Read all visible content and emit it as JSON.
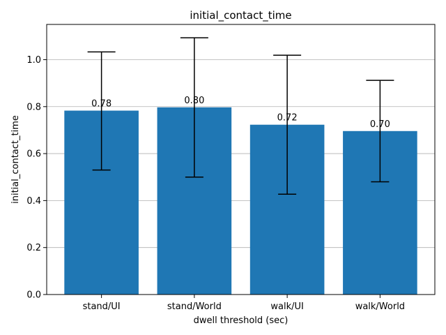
{
  "chart_data": {
    "type": "bar",
    "title": "initial_contact_time",
    "xlabel": "dwell threshold (sec)",
    "ylabel": "initial_contact_time",
    "categories": [
      "stand/UI",
      "stand/World",
      "walk/UI",
      "walk/World"
    ],
    "values": [
      0.783,
      0.797,
      0.723,
      0.696
    ],
    "value_labels": [
      "0.78",
      "0.80",
      "0.72",
      "0.70"
    ],
    "error_low": [
      0.53,
      0.5,
      0.427,
      0.48
    ],
    "error_high": [
      1.033,
      1.093,
      1.019,
      0.912
    ],
    "ylim": [
      0,
      1.15
    ],
    "yticks": [
      0.0,
      0.2,
      0.4,
      0.6,
      0.8,
      1.0
    ],
    "ytick_labels": [
      "0.0",
      "0.2",
      "0.4",
      "0.6",
      "0.8",
      "1.0"
    ],
    "grid": "y",
    "bar_color": "#1f77b4"
  }
}
